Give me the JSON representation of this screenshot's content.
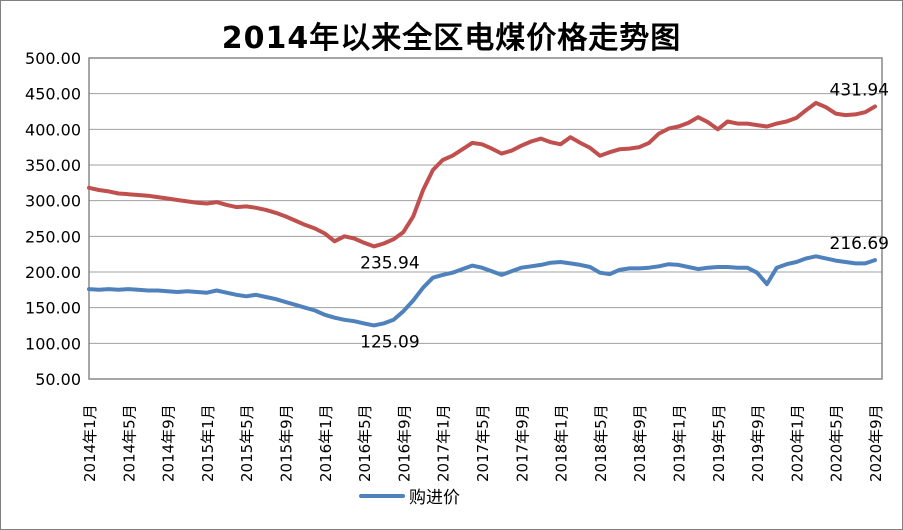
{
  "window": {
    "background": "#FFFFFF",
    "border_color": "#808080"
  },
  "chart_data": {
    "type": "line",
    "title": "2014年以来全区电煤价格走势图",
    "ylim": [
      50,
      500
    ],
    "y_tick_labels": [
      "500.00",
      "450.00",
      "400.00",
      "350.00",
      "300.00",
      "250.00",
      "200.00",
      "150.00",
      "100.00",
      "50.00"
    ],
    "x_tick_labels": [
      "2014年1月",
      "2014年5月",
      "2014年9月",
      "2015年1月",
      "2015年5月",
      "2015年9月",
      "2016年1月",
      "2016年5月",
      "2016年9月",
      "2017年1月",
      "2017年5月",
      "2017年9月",
      "2018年1月",
      "2018年5月",
      "2018年9月",
      "2019年1月",
      "2019年5月",
      "2019年9月",
      "2020年1月",
      "2020年5月",
      "2020年9月"
    ],
    "points_per_tick": 4,
    "n_points": 81,
    "grid": {
      "horizontal": true,
      "gridline_color": "#A0A0A0",
      "axis_color": "#808080"
    },
    "legend": {
      "position": "bottom",
      "visible_entries": [
        "购进价"
      ]
    },
    "series": [
      {
        "name": "",
        "color": "#C0504D",
        "values": [
          318,
          315,
          313,
          310,
          309,
          308,
          307,
          305,
          303,
          301,
          299,
          297,
          296,
          298,
          294,
          291,
          292,
          290,
          287,
          283,
          278,
          272,
          266,
          261,
          254,
          243,
          250,
          247,
          241,
          235.94,
          240,
          246,
          256,
          278,
          315,
          343,
          357,
          363,
          372,
          381,
          379,
          373,
          366,
          370,
          377,
          383,
          387,
          382,
          379,
          389,
          381,
          374,
          363,
          368,
          372,
          373,
          375,
          381,
          394,
          401,
          404,
          409,
          417,
          410,
          400,
          411,
          408,
          408,
          406,
          404,
          408,
          411,
          416,
          427,
          437,
          431,
          422,
          420,
          421,
          424,
          431.94
        ]
      },
      {
        "name": "购进价",
        "color": "#4F81BD",
        "values": [
          176,
          175,
          176,
          175,
          176,
          175,
          174,
          174,
          173,
          172,
          173,
          172,
          171,
          174,
          171,
          168,
          166,
          168,
          165,
          162,
          158,
          154,
          150,
          146,
          140,
          136,
          133,
          131,
          128,
          125.09,
          128,
          133,
          145,
          160,
          178,
          192,
          196,
          199,
          204,
          209,
          206,
          201,
          196,
          201,
          206,
          208,
          210,
          213,
          214,
          212,
          210,
          207,
          199,
          197,
          203,
          205,
          205,
          206,
          208,
          211,
          210,
          207,
          204,
          206,
          207,
          207,
          206,
          206,
          199,
          183,
          206,
          211,
          214,
          219,
          222,
          219,
          216,
          214,
          212,
          212,
          216.69
        ]
      }
    ],
    "annotations": [
      {
        "text": "235.94",
        "series": 0,
        "point_index": 29,
        "placement": "below"
      },
      {
        "text": "125.09",
        "series": 1,
        "point_index": 29,
        "placement": "below"
      },
      {
        "text": "431.94",
        "series": 0,
        "point_index": 80,
        "placement": "above"
      },
      {
        "text": "216.69",
        "series": 1,
        "point_index": 80,
        "placement": "above"
      }
    ]
  }
}
